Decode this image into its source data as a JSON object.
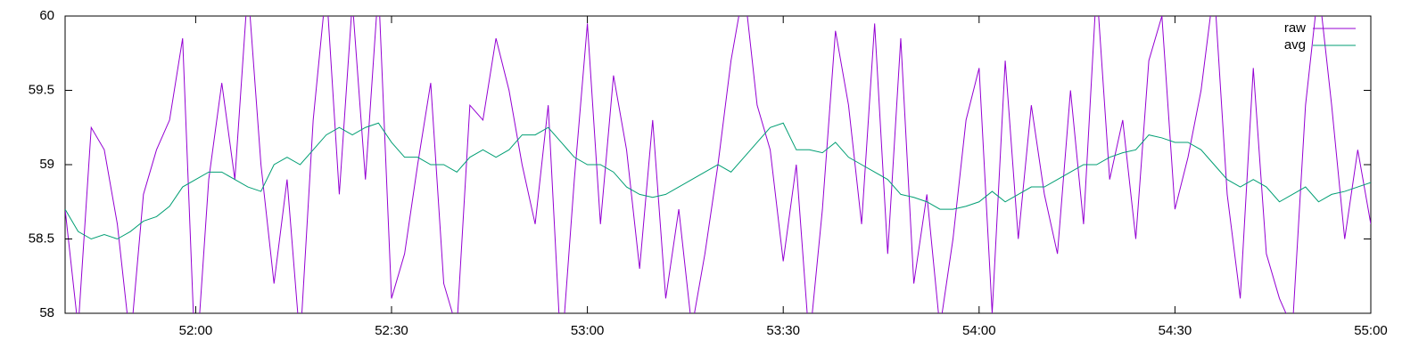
{
  "chart_data": {
    "type": "line",
    "x": [
      3100,
      3102,
      3104,
      3106,
      3108,
      3110,
      3112,
      3114,
      3116,
      3118,
      3120,
      3122,
      3124,
      3126,
      3128,
      3130,
      3132,
      3134,
      3136,
      3138,
      3140,
      3142,
      3144,
      3146,
      3148,
      3150,
      3152,
      3154,
      3156,
      3158,
      3160,
      3162,
      3164,
      3166,
      3168,
      3170,
      3172,
      3174,
      3176,
      3178,
      3180,
      3182,
      3184,
      3186,
      3188,
      3190,
      3192,
      3194,
      3196,
      3198,
      3200,
      3202,
      3204,
      3206,
      3208,
      3210,
      3212,
      3214,
      3216,
      3218,
      3220,
      3222,
      3224,
      3226,
      3228,
      3230,
      3232,
      3234,
      3236,
      3238,
      3240,
      3242,
      3244,
      3246,
      3248,
      3250,
      3252,
      3254,
      3256,
      3258,
      3260,
      3262,
      3264,
      3266,
      3268,
      3270,
      3272,
      3274,
      3276,
      3278,
      3280,
      3282,
      3284,
      3286,
      3288,
      3290,
      3292,
      3294,
      3296,
      3298,
      3300
    ],
    "series": [
      {
        "name": "raw",
        "color": "#9400d3",
        "values": [
          58.7,
          57.9,
          59.25,
          59.1,
          58.6,
          57.8,
          58.8,
          59.1,
          59.3,
          59.85,
          57.6,
          58.9,
          59.55,
          58.9,
          60.2,
          59.0,
          58.2,
          58.9,
          57.8,
          59.3,
          60.2,
          58.8,
          60.1,
          58.9,
          60.2,
          58.1,
          58.4,
          59.0,
          59.55,
          58.2,
          57.9,
          59.4,
          59.3,
          59.85,
          59.5,
          59.0,
          58.6,
          59.4,
          57.7,
          58.9,
          59.95,
          58.6,
          59.6,
          59.1,
          58.3,
          59.3,
          58.1,
          58.7,
          57.9,
          58.4,
          59.0,
          59.7,
          60.2,
          59.4,
          59.1,
          58.35,
          59.0,
          57.8,
          58.7,
          59.9,
          59.4,
          58.6,
          59.95,
          58.4,
          59.85,
          58.2,
          58.8,
          57.9,
          58.5,
          59.3,
          59.65,
          58.0,
          59.7,
          58.5,
          59.4,
          58.8,
          58.4,
          59.5,
          58.6,
          60.2,
          58.9,
          59.3,
          58.5,
          59.7,
          60.0,
          58.7,
          59.05,
          59.5,
          60.2,
          58.8,
          58.1,
          59.65,
          58.4,
          58.1,
          57.9,
          59.4,
          60.2,
          59.4,
          58.5,
          59.1,
          58.6
        ]
      },
      {
        "name": "avg",
        "color": "#009e73",
        "values": [
          58.7,
          58.55,
          58.5,
          58.53,
          58.5,
          58.55,
          58.62,
          58.65,
          58.72,
          58.85,
          58.9,
          58.95,
          58.95,
          58.9,
          58.85,
          58.82,
          59.0,
          59.05,
          59.0,
          59.1,
          59.2,
          59.25,
          59.2,
          59.25,
          59.28,
          59.15,
          59.05,
          59.05,
          59.0,
          59.0,
          58.95,
          59.05,
          59.1,
          59.05,
          59.1,
          59.2,
          59.2,
          59.25,
          59.15,
          59.05,
          59.0,
          59.0,
          58.95,
          58.85,
          58.8,
          58.78,
          58.8,
          58.85,
          58.9,
          58.95,
          59.0,
          58.95,
          59.05,
          59.15,
          59.25,
          59.28,
          59.1,
          59.1,
          59.08,
          59.15,
          59.05,
          59.0,
          58.95,
          58.9,
          58.8,
          58.78,
          58.75,
          58.7,
          58.7,
          58.72,
          58.75,
          58.82,
          58.75,
          58.8,
          58.85,
          58.85,
          58.9,
          58.95,
          59.0,
          59.0,
          59.05,
          59.08,
          59.1,
          59.2,
          59.18,
          59.15,
          59.15,
          59.1,
          59.0,
          58.9,
          58.85,
          58.9,
          58.85,
          58.75,
          58.8,
          58.85,
          58.75,
          58.8,
          58.82,
          58.85,
          58.88
        ]
      }
    ],
    "xlim": [
      3100,
      3300
    ],
    "xticks": [
      {
        "value": 3120,
        "label": "52:00"
      },
      {
        "value": 3150,
        "label": "52:30"
      },
      {
        "value": 3180,
        "label": "53:00"
      },
      {
        "value": 3210,
        "label": "53:30"
      },
      {
        "value": 3240,
        "label": "54:00"
      },
      {
        "value": 3270,
        "label": "54:30"
      },
      {
        "value": 3300,
        "label": "55:00"
      }
    ],
    "ylim": [
      58,
      60
    ],
    "yticks": [
      58,
      58.5,
      59,
      59.5,
      60
    ],
    "legend": "top-right"
  }
}
